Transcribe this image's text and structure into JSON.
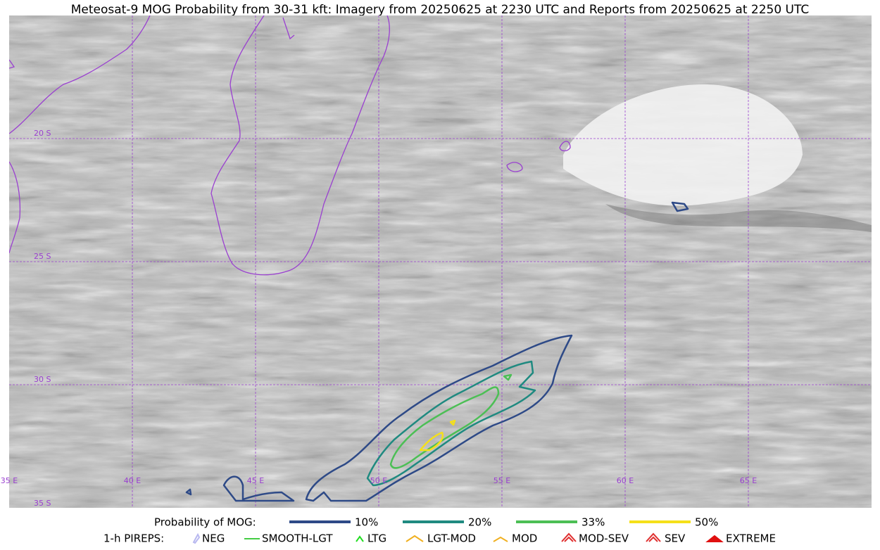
{
  "title": "Meteosat-9 MOG Probability from 30-31 kft: Imagery from 20250625 at 2230 UTC and Reports from 20250625 at 2250 UTC",
  "lat_labels": [
    "20 S",
    "25 S",
    "30 S",
    "35 S"
  ],
  "lon_labels": [
    "35 E",
    "40 E",
    "45 E",
    "50 E",
    "55 E",
    "60 E",
    "65 E"
  ],
  "probability_legend": {
    "title": "Probability of MOG:",
    "items": [
      {
        "label": "10%",
        "color": "#2e4a87"
      },
      {
        "label": "20%",
        "color": "#1f8a80"
      },
      {
        "label": "33%",
        "color": "#4cbf55"
      },
      {
        "label": "50%",
        "color": "#f5e01a"
      }
    ]
  },
  "pirep_legend": {
    "title": "1-h PIREPS:",
    "items": [
      {
        "label": "NEG",
        "color": "#b8b8f0"
      },
      {
        "label": "SMOOTH-LGT",
        "color": "#44cc44"
      },
      {
        "label": "LTG",
        "color": "#22dd22"
      },
      {
        "label": "LGT-MOD",
        "color": "#f0b020"
      },
      {
        "label": "MOD",
        "color": "#f0b020"
      },
      {
        "label": "MOD-SEV",
        "color": "#e03030"
      },
      {
        "label": "SEV",
        "color": "#e03030"
      },
      {
        "label": "EXTREME",
        "color": "#e01010"
      }
    ]
  }
}
